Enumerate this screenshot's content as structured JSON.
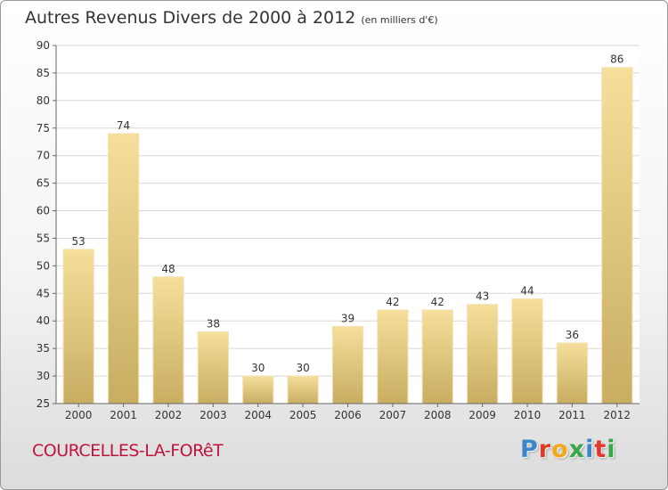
{
  "header": {
    "title": "Autres Revenus Divers de 2000 à 2012",
    "subtitle": "(en milliers d'€)"
  },
  "footer": {
    "city": "COURCELLES-LA-FORêT",
    "logo_letters": [
      "P",
      "r",
      "o",
      "x",
      "i",
      "t",
      "i"
    ],
    "logo_colors": [
      "#3a86c8",
      "#e2392b",
      "#f0a81c",
      "#3aa64a",
      "#3a86c8",
      "#e2392b",
      "#3aa64a"
    ]
  },
  "colors": {
    "bar_top": "#f5df9a",
    "bar_bottom": "#c8ad62",
    "grid": "#d8d8d8"
  },
  "chart_data": {
    "type": "bar",
    "categories": [
      "2000",
      "2001",
      "2002",
      "2003",
      "2004",
      "2005",
      "2006",
      "2007",
      "2008",
      "2009",
      "2010",
      "2011",
      "2012"
    ],
    "values": [
      53,
      74,
      48,
      38,
      30,
      30,
      39,
      42,
      42,
      43,
      44,
      36,
      86
    ],
    "yticks": [
      25,
      30,
      35,
      40,
      45,
      50,
      55,
      60,
      65,
      70,
      75,
      80,
      85,
      90
    ],
    "ylim": [
      25,
      90
    ],
    "grid": true
  }
}
